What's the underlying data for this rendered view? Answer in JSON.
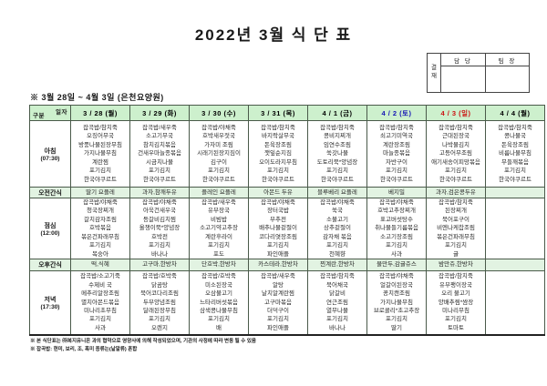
{
  "title": "2022년 3월 식 단 표",
  "approval": {
    "label": "결\n재",
    "columns": [
      "담 당",
      "팀 장"
    ]
  },
  "subtitle": "※ 3월 28일 ~ 4월 3일 (은천요양원)",
  "colors": {
    "header_bg": "#cdf0cd",
    "snack_bg": "#e2f3e2",
    "saturday": "#1515b5",
    "sunday": "#cc1111",
    "weekday": "#000000"
  },
  "table": {
    "corner": {
      "top": "일자",
      "bottom": "구분"
    },
    "days": [
      {
        "label": "3 / 28 (월)",
        "color": "#000000"
      },
      {
        "label": "3 / 29 (화)",
        "color": "#000000"
      },
      {
        "label": "3 / 30 (수)",
        "color": "#000000"
      },
      {
        "label": "3 / 31 (목)",
        "color": "#000000"
      },
      {
        "label": "4 / 1 (금)",
        "color": "#000000"
      },
      {
        "label": "4 / 2 (토)",
        "color": "#1515b5"
      },
      {
        "label": "4 / 3 (일)",
        "color": "#cc1111"
      },
      {
        "label": "4 / 4 (월)",
        "color": "#000000"
      }
    ],
    "rows": [
      {
        "type": "meal",
        "label": "아침",
        "time": "(07:30)",
        "cells": [
          [
            "잡곡밥/참치죽",
            "오징어무국",
            "방풍나물된장무침",
            "가지나물무침",
            "계란찜",
            "포기김치",
            "한국야쿠르트"
          ],
          [
            "잡곡밥/새우죽",
            "소고기무국",
            "참치김치볶음",
            "건새우마늘종볶음",
            "시금치나물",
            "포기김치",
            "한국야쿠르트"
          ],
          [
            "잡곡밥/야채죽",
            "호박새우젓국",
            "가자미 조림",
            "시래기된장지짐이",
            "김구이",
            "포기김치",
            "한국야쿠르트"
          ],
          [
            "잡곡밥/참치죽",
            "바지락살무국",
            "돈육장조림",
            "깻잎순지짐",
            "오이도라지무침",
            "포기김치",
            "한국야쿠르트"
          ],
          [
            "잡곡밥/참치죽",
            "콩비지찌개",
            "임연수조림",
            "쑥갓나물",
            "도토리묵*양념장",
            "포기김치",
            "한국야쿠르트"
          ],
          [
            "잡곡밥/참치죽",
            "쇠고기미역국",
            "계란장조림",
            "마늘종볶음",
            "자반구이",
            "포기김치",
            "한국야쿠르트"
          ],
          [
            "잡곡밥/참치죽",
            "근대된장국",
            "나박물김치",
            "고등어무조림",
            "애기새송이피망볶음",
            "포기김치",
            "한국야쿠르트"
          ],
          [
            "잡곡밥/참치죽",
            "콩나물국",
            "돈육장조림",
            "비름나물무침",
            "무들깨볶음",
            "포기김치",
            "한국야쿠르트"
          ]
        ]
      },
      {
        "type": "snack",
        "label": "오전간식",
        "cells": [
          [
            "딸기 요플레"
          ],
          [
            "과자,참깨두유"
          ],
          [
            "플레인 요플레"
          ],
          [
            "아몬드 두유"
          ],
          [
            "블루베리 요플레"
          ],
          [
            "베지밀"
          ],
          [
            "과자,검은콩두유"
          ],
          [
            ""
          ]
        ]
      },
      {
        "type": "meal",
        "label": "점심",
        "time": "(12:00)",
        "cells": [
          [
            "잡곡밥/야채죽",
            "청국장찌개",
            "갈치감자조림",
            "호박볶음",
            "볶은건파래무침",
            "포기김치",
            "복숭아"
          ],
          [
            "잡곡밥/야채죽",
            "아욱건새우국",
            "등갈비김치찜",
            "올챙이묵*양념장",
            "호박전",
            "포기김치",
            "바나나"
          ],
          [
            "잡곡밥/새우죽",
            "유부장국",
            "비빔밥",
            "소고기약고추장",
            "계란후라이",
            "포기김치",
            "포도"
          ],
          [
            "잡곡밥/야채죽",
            "장터국밥",
            "부추전",
            "배추나물겉절이",
            "코다리엿장조림",
            "포기김치",
            "파인애플"
          ],
          [
            "잡곡밥/야채죽",
            "쑥국",
            "소불고기",
            "상추겉절이",
            "감자채 볶음",
            "포기김치",
            "천혜향"
          ],
          [
            "잡곡밥/야채죽",
            "호박고추장찌개",
            "표고버섯탕수",
            "취나물들기름볶음",
            "소고기장조림",
            "포기김치",
            "사과"
          ],
          [
            "잡곡밥/참치죽",
            "된장찌개",
            "북어포구이",
            "비엔나케찹조림",
            "볶은건파래무침",
            "포기김치",
            "귤"
          ],
          [
            ""
          ]
        ]
      },
      {
        "type": "snack",
        "label": "오후간식",
        "cells": [
          [
            "떡,식혜"
          ],
          [
            "고구마,한방차"
          ],
          [
            "단호박,한방차"
          ],
          [
            "카스테라,한방차"
          ],
          [
            "찐계란,한방차"
          ],
          [
            "물만두,감귤쥬스"
          ],
          [
            "밤만쥬,한방차"
          ],
          [
            ""
          ]
        ]
      },
      {
        "type": "meal",
        "label": "저녁",
        "time": "(17:30)",
        "cells": [
          [
            "잡곡밥/소고기죽",
            "수제비 국",
            "메추리알장조림",
            "멸치아몬드볶음",
            "미나리초무침",
            "포기김치",
            "사과"
          ],
          [
            "잡곡밥/호박죽",
            "닭곰탕",
            "북어코다리조림",
            "두부양념조림",
            "달래된장무침",
            "포기김치",
            "오렌지"
          ],
          [
            "잡곡밥/호박죽",
            "미소된장국",
            "오삼불고기",
            "느타리버섯볶음",
            "삼색콩나물무침",
            "포기김치",
            "배"
          ],
          [
            "잡곡밥/새우죽",
            "알탕",
            "날치알계란찜",
            "고구마볶음",
            "더덕구이",
            "포기김치",
            "파인애플"
          ],
          [
            "잡곡밥/참치죽",
            "북어채국",
            "닭갈비",
            "연근조림",
            "열무나물",
            "포기김치",
            "바나나"
          ],
          [
            "잡곡밥/야채죽",
            "얼갈이된장국",
            "꽁치캔조림",
            "가지나물무침",
            "브로콜리*초고추장",
            "포기김치",
            "딸기"
          ],
          [
            "잡곡밥/참치죽",
            "유부팽이장국",
            "오리 불고기",
            "양배추찜*쌈장",
            "미나리무침",
            "포기김치",
            "토마토"
          ],
          [
            ""
          ]
        ]
      }
    ]
  },
  "notes": [
    "※ 본 식단표는 ㈜복지유니온 과의 협약으로 영양사에 의해 작성되었으며, 기관의 사정에 따라 변동 될 수 있음",
    "※ 잡곡밥: 현미, 보리, 조, 흑미 종류는(낱알류) 혼합"
  ]
}
